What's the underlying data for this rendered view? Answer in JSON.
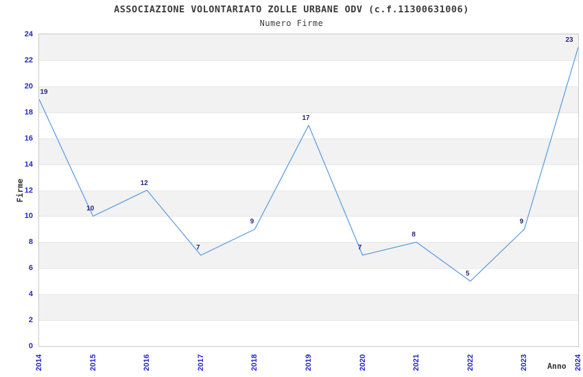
{
  "header": {
    "title": "ASSOCIAZIONE VOLONTARIATO ZOLLE URBANE ODV (c.f.11300631006)",
    "subtitle": "Numero Firme"
  },
  "chart_data": {
    "type": "line",
    "title": "ASSOCIAZIONE VOLONTARIATO ZOLLE URBANE ODV (c.f.11300631006)",
    "subtitle": "Numero Firme",
    "xlabel": "Anno",
    "ylabel": "Firme",
    "categories": [
      "2014",
      "2015",
      "2016",
      "2017",
      "2018",
      "2019",
      "2020",
      "2021",
      "2022",
      "2023",
      "2024"
    ],
    "values": [
      19,
      10,
      12,
      7,
      9,
      17,
      7,
      8,
      5,
      9,
      23
    ],
    "ylim": [
      0,
      24
    ],
    "ytick_step": 2,
    "legend": "none",
    "grid": "horizontal-bands",
    "colors": {
      "line": "#5e9fe0",
      "tick_label": "#2323cd",
      "data_label": "#26267a",
      "band_gray": "#f2f2f2",
      "band_white": "#ffffff",
      "grid_line": "#e7e7e7",
      "plot_border": "#c9c9c9",
      "title_text": "#3b3b3b",
      "axis_title_text": "#333333"
    }
  }
}
